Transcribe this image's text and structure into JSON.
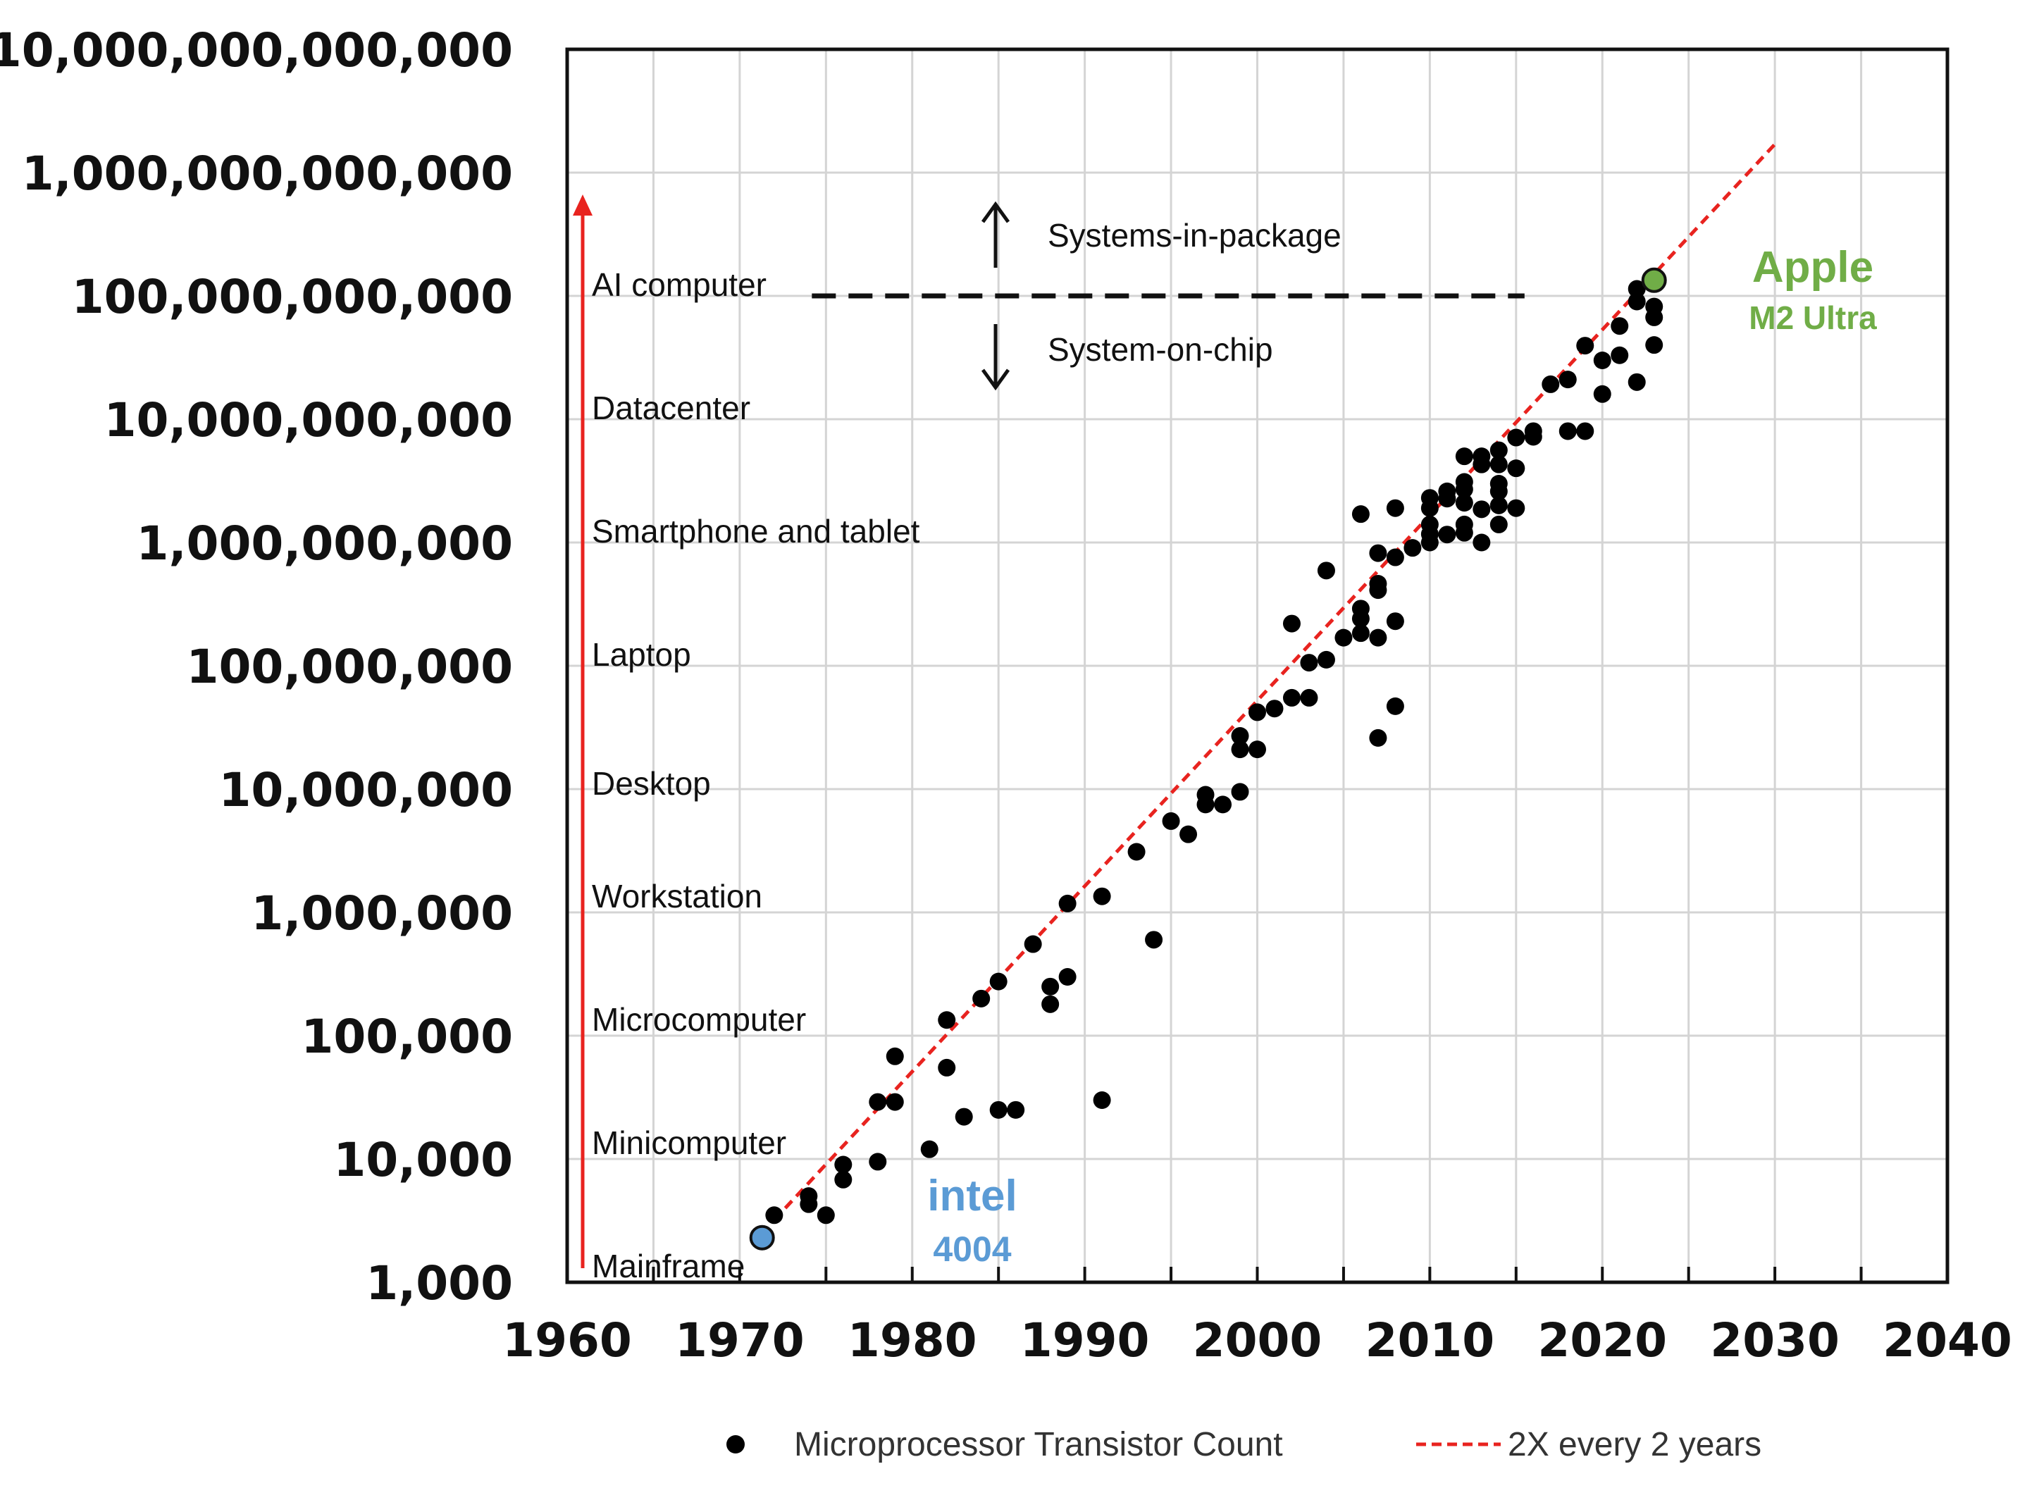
{
  "chart_data": {
    "type": "scatter",
    "y_scale": "log10",
    "xlim": [
      1960,
      2040
    ],
    "ylim": [
      1000,
      10000000000000
    ],
    "grid": true,
    "x_ticks": [
      "1960",
      "1970",
      "1980",
      "1990",
      "2000",
      "2010",
      "2020",
      "2030",
      "2040"
    ],
    "y_ticks": [
      "1,000",
      "10,000",
      "100,000",
      "1,000,000",
      "10,000,000",
      "100,000,000",
      "1,000,000,000",
      "10,000,000,000",
      "100,000,000,000",
      "1,000,000,000,000",
      "10,000,000,000,000"
    ],
    "legend": {
      "placement": "bottom",
      "entries": [
        {
          "label": "Microprocessor Transistor Count",
          "marker": "dot",
          "color": "#000000"
        },
        {
          "label": "2X every 2 years",
          "marker": "dashed-line",
          "color": "#e8231f"
        }
      ]
    },
    "trend_line": {
      "name": "2X every 2 years",
      "points": [
        [
          1972,
          3200
        ],
        [
          2030,
          1700000000000
        ]
      ],
      "color": "#e8231f",
      "style": "dashed"
    },
    "eras": [
      {
        "label": "Mainframe",
        "y": 1100
      },
      {
        "label": "Minicomputer",
        "y": 11000
      },
      {
        "label": "Microcomputer",
        "y": 110000
      },
      {
        "label": "Workstation",
        "y": 1100000
      },
      {
        "label": "Desktop",
        "y": 9000000
      },
      {
        "label": "Laptop",
        "y": 100000000
      },
      {
        "label": "Smartphone and tablet",
        "y": 1000000000
      },
      {
        "label": "Datacenter",
        "y": 10000000000
      },
      {
        "label": "AI computer",
        "y": 100000000000
      }
    ],
    "era_arrow_color": "#e8231f",
    "threshold": {
      "y": 100000000000,
      "x_range": [
        1975,
        2015
      ],
      "above_label": "Systems-in-package",
      "below_label": "System-on-chip"
    },
    "highlights": [
      {
        "name": "intel",
        "sub": "4004",
        "x": 1971.3,
        "y": 2300,
        "color": "#5b9bd5"
      },
      {
        "name": "Apple",
        "sub": "M2 Ultra",
        "x": 2023.0,
        "y": 134000000000,
        "color": "#70ad47"
      }
    ],
    "points": [
      [
        1972,
        3500
      ],
      [
        1974,
        5000
      ],
      [
        1974,
        4300
      ],
      [
        1975,
        3500
      ],
      [
        1976,
        9000
      ],
      [
        1976,
        6800
      ],
      [
        1978,
        9500
      ],
      [
        1978,
        29000
      ],
      [
        1979,
        29000
      ],
      [
        1979,
        68000
      ],
      [
        1981,
        12000
      ],
      [
        1982,
        55000
      ],
      [
        1982,
        134000
      ],
      [
        1983,
        22000
      ],
      [
        1984,
        200000
      ],
      [
        1985,
        275000
      ],
      [
        1985,
        25000
      ],
      [
        1986,
        25000
      ],
      [
        1987,
        553000
      ],
      [
        1988,
        250000
      ],
      [
        1988,
        180000
      ],
      [
        1989,
        1180000
      ],
      [
        1989,
        300000
      ],
      [
        1991,
        1350000
      ],
      [
        1991,
        30000
      ],
      [
        1993,
        3100000
      ],
      [
        1994,
        600000
      ],
      [
        1995,
        5500000
      ],
      [
        1996,
        4300000
      ],
      [
        1997,
        7500000
      ],
      [
        1997,
        9000000
      ],
      [
        1998,
        7500000
      ],
      [
        1999,
        9500000
      ],
      [
        1999,
        21000000
      ],
      [
        1999,
        27000000
      ],
      [
        2000,
        21000000
      ],
      [
        2000,
        42000000
      ],
      [
        2001,
        45000000
      ],
      [
        2002,
        55000000
      ],
      [
        2002,
        220000000
      ],
      [
        2003,
        55000000
      ],
      [
        2003,
        106000000
      ],
      [
        2004,
        112000000
      ],
      [
        2004,
        592000000
      ],
      [
        2005,
        169000000
      ],
      [
        2006,
        184000000
      ],
      [
        2006,
        241000000
      ],
      [
        2006,
        291000000
      ],
      [
        2006,
        1700000000
      ],
      [
        2007,
        26000000
      ],
      [
        2007,
        169000000
      ],
      [
        2007,
        411000000
      ],
      [
        2007,
        463000000
      ],
      [
        2007,
        820000000
      ],
      [
        2008,
        47000000
      ],
      [
        2008,
        230000000
      ],
      [
        2008,
        758000000
      ],
      [
        2008,
        1900000000
      ],
      [
        2009,
        904000000
      ],
      [
        2010,
        1000000000
      ],
      [
        2010,
        1170000000
      ],
      [
        2010,
        1400000000
      ],
      [
        2010,
        1900000000
      ],
      [
        2010,
        2300000000
      ],
      [
        2011,
        1160000000
      ],
      [
        2011,
        2270000000
      ],
      [
        2011,
        2600000000
      ],
      [
        2012,
        1200000000
      ],
      [
        2012,
        1400000000
      ],
      [
        2012,
        2100000000
      ],
      [
        2012,
        2700000000
      ],
      [
        2012,
        3100000000
      ],
      [
        2012,
        5000000000
      ],
      [
        2013,
        1000000000
      ],
      [
        2013,
        1860000000
      ],
      [
        2013,
        4300000000
      ],
      [
        2013,
        5000000000
      ],
      [
        2014,
        1400000000
      ],
      [
        2014,
        2000000000
      ],
      [
        2014,
        2600000000
      ],
      [
        2014,
        3000000000
      ],
      [
        2014,
        4300000000
      ],
      [
        2014,
        5600000000
      ],
      [
        2015,
        1900000000
      ],
      [
        2015,
        4000000000
      ],
      [
        2015,
        7100000000
      ],
      [
        2016,
        7200000000
      ],
      [
        2016,
        8000000000
      ],
      [
        2017,
        19200000000
      ],
      [
        2018,
        8000000000
      ],
      [
        2018,
        21000000000
      ],
      [
        2019,
        8000000000
      ],
      [
        2019,
        39500000000
      ],
      [
        2020,
        16000000000
      ],
      [
        2020,
        30000000000
      ],
      [
        2021,
        33000000000
      ],
      [
        2021,
        57000000000
      ],
      [
        2022,
        20000000000
      ],
      [
        2022,
        90000000000
      ],
      [
        2022,
        114000000000
      ],
      [
        2023,
        40000000000
      ],
      [
        2023,
        67000000000
      ],
      [
        2023,
        82000000000
      ]
    ]
  }
}
